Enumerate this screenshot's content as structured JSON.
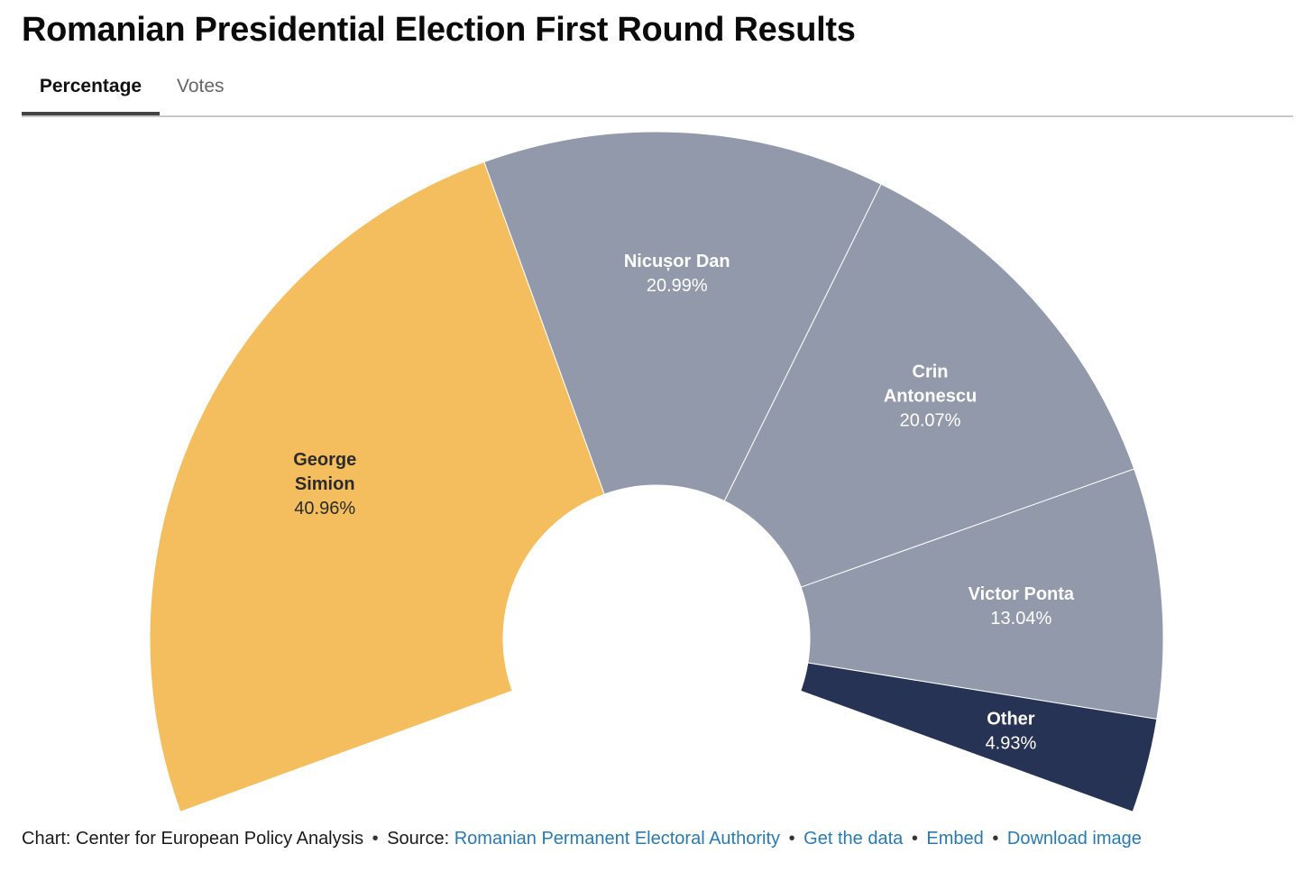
{
  "title": "Romanian Presidential Election First Round Results",
  "tabs": [
    {
      "label": "Percentage",
      "active": true
    },
    {
      "label": "Votes",
      "active": false
    }
  ],
  "chart_data": {
    "type": "pie",
    "variant": "semicircle-donut",
    "slices": [
      {
        "name_lines": [
          "George",
          "Simion"
        ],
        "value": 40.96,
        "value_label": "40.96%",
        "color": "#f4be5e",
        "text_color": "#2b2b2b"
      },
      {
        "name_lines": [
          "Nicușor Dan"
        ],
        "value": 20.99,
        "value_label": "20.99%",
        "color": "#9199aa",
        "text_color": "#ffffff"
      },
      {
        "name_lines": [
          "Crin",
          "Antonescu"
        ],
        "value": 20.07,
        "value_label": "20.07%",
        "color": "#9199aa",
        "text_color": "#ffffff"
      },
      {
        "name_lines": [
          "Victor Ponta"
        ],
        "value": 13.04,
        "value_label": "13.04%",
        "color": "#9199aa",
        "text_color": "#ffffff"
      },
      {
        "name_lines": [
          "Other"
        ],
        "value": 4.93,
        "value_label": "4.93%",
        "color": "#263354",
        "text_color": "#ffffff"
      }
    ]
  },
  "footer": {
    "chart_credit": "Chart: Center for European Policy Analysis",
    "separator": "•",
    "source_prefix": "Source:",
    "source_link": "Romanian Permanent Electoral Authority",
    "get_data": "Get the data",
    "embed": "Embed",
    "download": "Download image"
  },
  "colors": {
    "accent_link": "#2a7ab0",
    "simion": "#f4be5e",
    "others_grey": "#9199aa",
    "other_navy": "#263354"
  }
}
